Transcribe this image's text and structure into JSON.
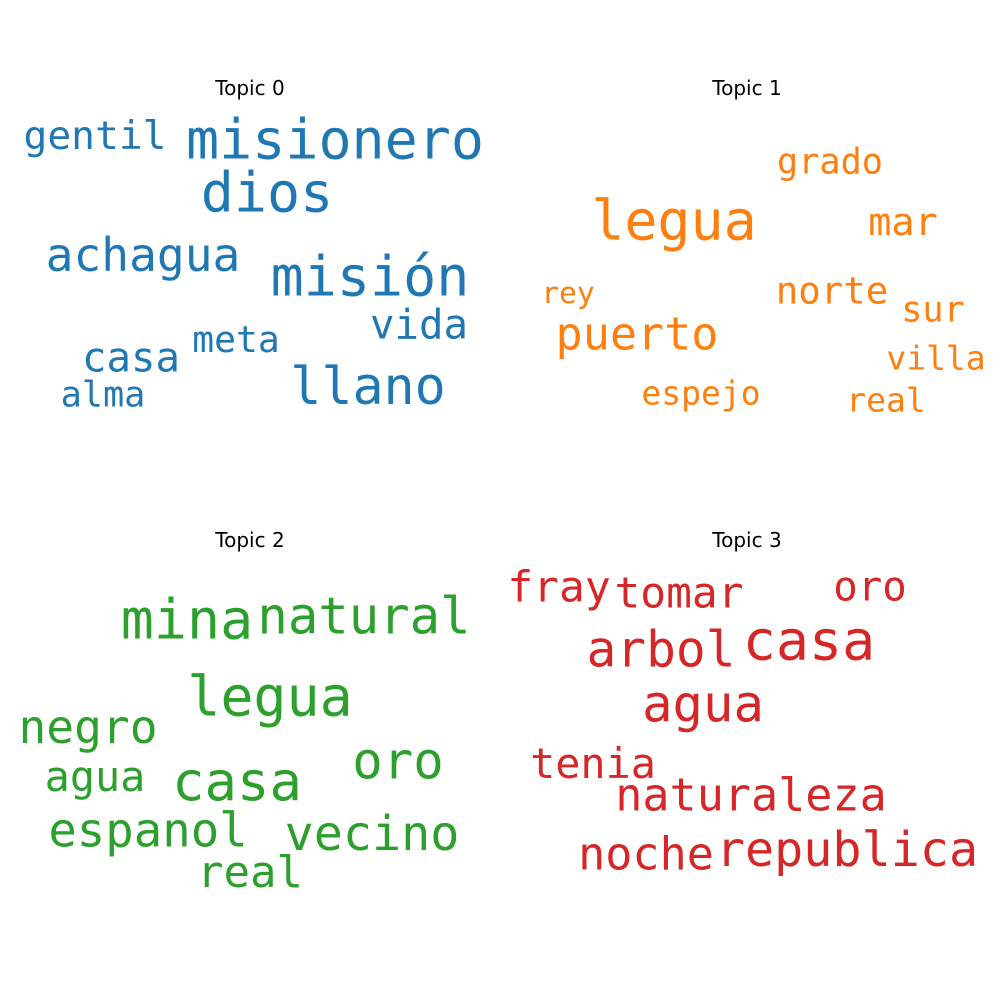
{
  "chart_data": {
    "type": "wordcloud",
    "panels": [
      {
        "title": "Topic 0",
        "color": "#1f77b4",
        "words": [
          {
            "text": "misionero",
            "weight": 1.0
          },
          {
            "text": "misión",
            "weight": 1.0
          },
          {
            "text": "dios",
            "weight": 1.0
          },
          {
            "text": "llano",
            "weight": 0.94
          },
          {
            "text": "achagua",
            "weight": 0.84
          },
          {
            "text": "gentil",
            "weight": 0.72
          },
          {
            "text": "vida",
            "weight": 0.74
          },
          {
            "text": "casa",
            "weight": 0.74
          },
          {
            "text": "meta",
            "weight": 0.66
          },
          {
            "text": "alma",
            "weight": 0.64
          }
        ]
      },
      {
        "title": "Topic 1",
        "color": "#ff7f0e",
        "words": [
          {
            "text": "legua",
            "weight": 1.0
          },
          {
            "text": "puerto",
            "weight": 0.82
          },
          {
            "text": "mar",
            "weight": 0.7
          },
          {
            "text": "norte",
            "weight": 0.68
          },
          {
            "text": "grado",
            "weight": 0.64
          },
          {
            "text": "sur",
            "weight": 0.64
          },
          {
            "text": "villa",
            "weight": 0.6
          },
          {
            "text": "espejo",
            "weight": 0.6
          },
          {
            "text": "real",
            "weight": 0.6
          },
          {
            "text": "rey",
            "weight": 0.54
          }
        ]
      },
      {
        "title": "Topic 2",
        "color": "#2ca02c",
        "words": [
          {
            "text": "legua",
            "weight": 1.0
          },
          {
            "text": "mina",
            "weight": 1.0
          },
          {
            "text": "casa",
            "weight": 0.98
          },
          {
            "text": "natural",
            "weight": 0.92
          },
          {
            "text": "oro",
            "weight": 0.92
          },
          {
            "text": "vecino",
            "weight": 0.88
          },
          {
            "text": "espanol",
            "weight": 0.86
          },
          {
            "text": "negro",
            "weight": 0.84
          },
          {
            "text": "real",
            "weight": 0.8
          },
          {
            "text": "agua",
            "weight": 0.76
          }
        ]
      },
      {
        "title": "Topic 3",
        "color": "#d62728",
        "words": [
          {
            "text": "casa",
            "weight": 1.0
          },
          {
            "text": "agua",
            "weight": 0.92
          },
          {
            "text": "arbol",
            "weight": 0.9
          },
          {
            "text": "republica",
            "weight": 0.88
          },
          {
            "text": "naturaleza",
            "weight": 0.82
          },
          {
            "text": "noche",
            "weight": 0.82
          },
          {
            "text": "tomar",
            "weight": 0.78
          },
          {
            "text": "fray",
            "weight": 0.78
          },
          {
            "text": "tenia",
            "weight": 0.76
          },
          {
            "text": "oro",
            "weight": 0.74
          }
        ]
      }
    ]
  }
}
